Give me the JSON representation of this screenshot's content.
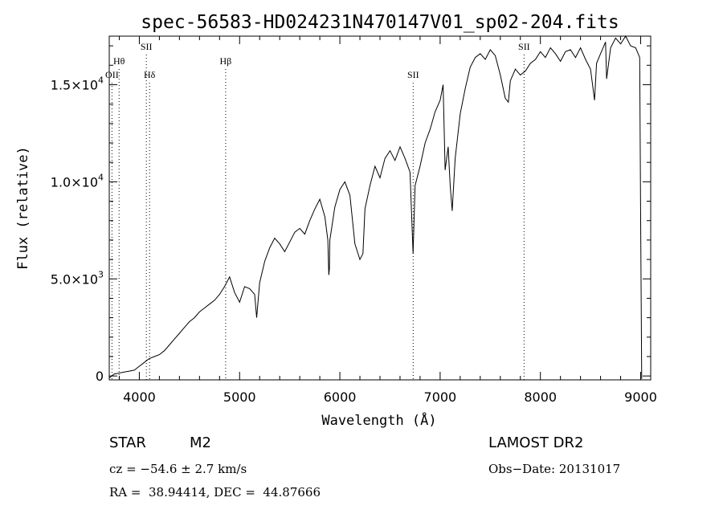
{
  "chart_data": {
    "type": "line",
    "title": "spec-56583-HD024231N470147V01_sp02-204.fits",
    "xlabel": "Wavelength (Å)",
    "ylabel": "Flux (relative)",
    "xlim": [
      3700,
      9100
    ],
    "ylim": [
      -200,
      17500
    ],
    "x_ticks": [
      4000,
      5000,
      6000,
      7000,
      8000,
      9000
    ],
    "x_tick_labels": [
      "4000",
      "5000",
      "6000",
      "7000",
      "8000",
      "9000"
    ],
    "y_ticks": [
      0,
      5000,
      10000,
      15000
    ],
    "y_tick_labels": [
      {
        "mantissa": "0",
        "exponent": ""
      },
      {
        "mantissa": "5.0×10",
        "exponent": "3"
      },
      {
        "mantissa": "1.0×10",
        "exponent": "4"
      },
      {
        "mantissa": "1.5×10",
        "exponent": "4"
      }
    ],
    "grid": false,
    "lines": [
      {
        "label": "OII",
        "wavelength": 3727,
        "label_row": 3
      },
      {
        "label": "Hθ",
        "wavelength": 3798,
        "label_row": 2
      },
      {
        "label": "SII",
        "wavelength": 4070,
        "label_row": 1
      },
      {
        "label": "Hδ",
        "wavelength": 4102,
        "label_row": 3
      },
      {
        "label": "Hβ",
        "wavelength": 4861,
        "label_row": 2
      },
      {
        "label": "SII",
        "wavelength": 6731,
        "label_row": 3
      },
      {
        "label": "SII",
        "wavelength": 7837,
        "label_row": 1
      }
    ],
    "series": [
      {
        "x": [
          3700,
          3750,
          3800,
          3850,
          3900,
          3950,
          4000,
          4050,
          4100,
          4150,
          4200,
          4250,
          4300,
          4350,
          4400,
          4450,
          4500,
          4550,
          4600,
          4650,
          4700,
          4750,
          4800,
          4850,
          4900,
          4950,
          5000,
          5050,
          5100,
          5150,
          5170,
          5200,
          5250,
          5300,
          5350,
          5400,
          5450,
          5500,
          5550,
          5600,
          5650,
          5700,
          5750,
          5800,
          5850,
          5880,
          5890,
          5895,
          5900,
          5950,
          6000,
          6050,
          6100,
          6150,
          6200,
          6230,
          6250,
          6300,
          6350,
          6400,
          6450,
          6500,
          6550,
          6600,
          6650,
          6700,
          6730,
          6750,
          6800,
          6850,
          6900,
          6950,
          7000,
          7030,
          7050,
          7080,
          7100,
          7120,
          7150,
          7200,
          7250,
          7300,
          7350,
          7400,
          7450,
          7500,
          7550,
          7600,
          7650,
          7680,
          7700,
          7750,
          7800,
          7850,
          7900,
          7950,
          8000,
          8050,
          8100,
          8150,
          8200,
          8250,
          8300,
          8350,
          8400,
          8450,
          8500,
          8540,
          8560,
          8600,
          8650,
          8660,
          8700,
          8750,
          8800,
          8850,
          8900,
          8950,
          8990,
          9000,
          9010
        ],
        "y": [
          -100,
          100,
          150,
          200,
          250,
          300,
          500,
          700,
          900,
          1000,
          1100,
          1300,
          1600,
          1900,
          2200,
          2500,
          2800,
          3000,
          3300,
          3500,
          3700,
          3900,
          4200,
          4600,
          5100,
          4300,
          3800,
          4600,
          4500,
          4200,
          3000,
          4800,
          5900,
          6600,
          7100,
          6800,
          6400,
          6900,
          7400,
          7600,
          7300,
          8000,
          8600,
          9100,
          8200,
          7000,
          5200,
          5500,
          7000,
          8700,
          9600,
          10000,
          9300,
          6800,
          6000,
          6300,
          8600,
          9800,
          10800,
          10200,
          11200,
          11600,
          11100,
          11800,
          11200,
          10500,
          6300,
          9800,
          10800,
          12000,
          12700,
          13600,
          14200,
          15000,
          10600,
          11800,
          9800,
          8500,
          11200,
          13500,
          14800,
          15900,
          16400,
          16600,
          16300,
          16800,
          16500,
          15500,
          14300,
          14100,
          15200,
          15800,
          15500,
          15700,
          16100,
          16300,
          16700,
          16400,
          16900,
          16600,
          16200,
          16700,
          16800,
          16400,
          16900,
          16300,
          15800,
          14200,
          16100,
          16600,
          17200,
          15300,
          16900,
          17400,
          17100,
          17600,
          17000,
          16900,
          16400,
          8000,
          -150
        ]
      }
    ]
  },
  "info": {
    "object_class": "STAR",
    "subclass": "M2",
    "survey": "LAMOST DR2",
    "cz": "cz = −54.6 ± 2.7 km/s",
    "obs_date": "Obs−Date: 20131017",
    "coords": "RA =  38.94414, DEC =  44.87666"
  }
}
